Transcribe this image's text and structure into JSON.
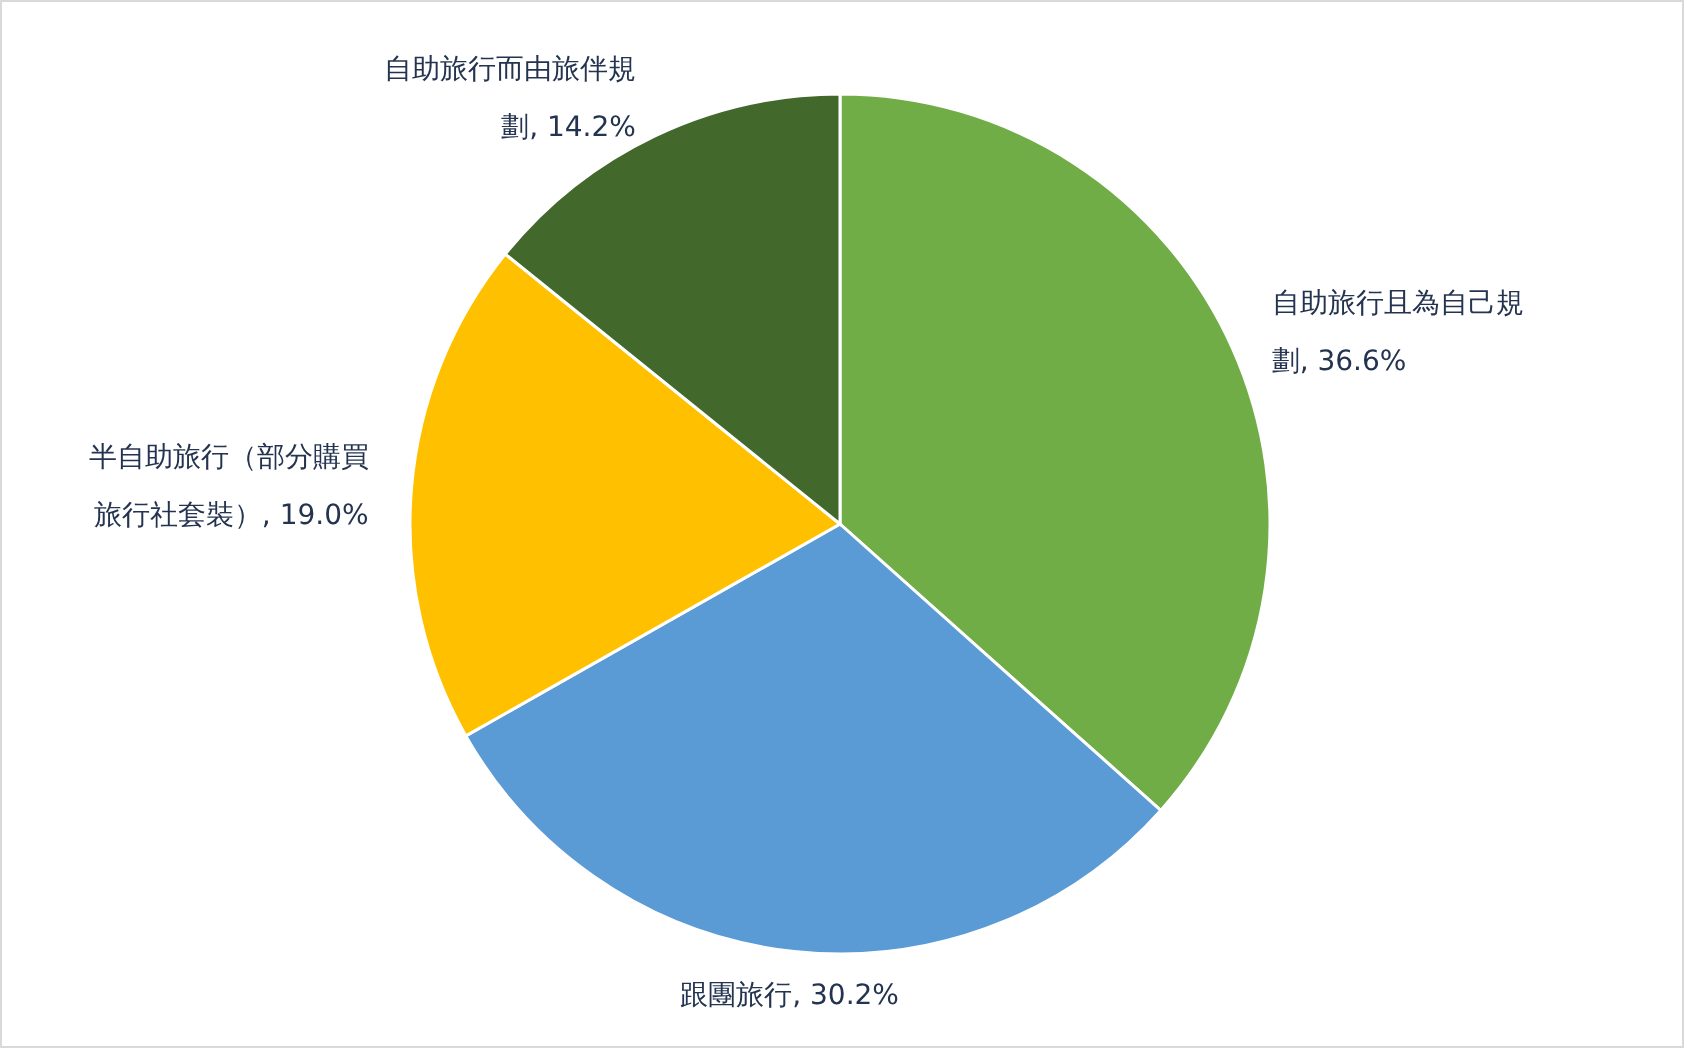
{
  "chart_data": {
    "type": "pie",
    "categories": [
      "自助旅行且為自己規劃",
      "跟團旅行",
      "半自助旅行（部分購買旅行社套裝）",
      "自助旅行而由旅伴規劃"
    ],
    "values": [
      36.6,
      30.2,
      19.0,
      14.2
    ],
    "value_labels": [
      "36.6%",
      "30.2%",
      "19.0%",
      "14.2%"
    ],
    "colors": [
      "#70ad47",
      "#5b9bd5",
      "#ffc000",
      "#43682b"
    ],
    "legend": false
  }
}
